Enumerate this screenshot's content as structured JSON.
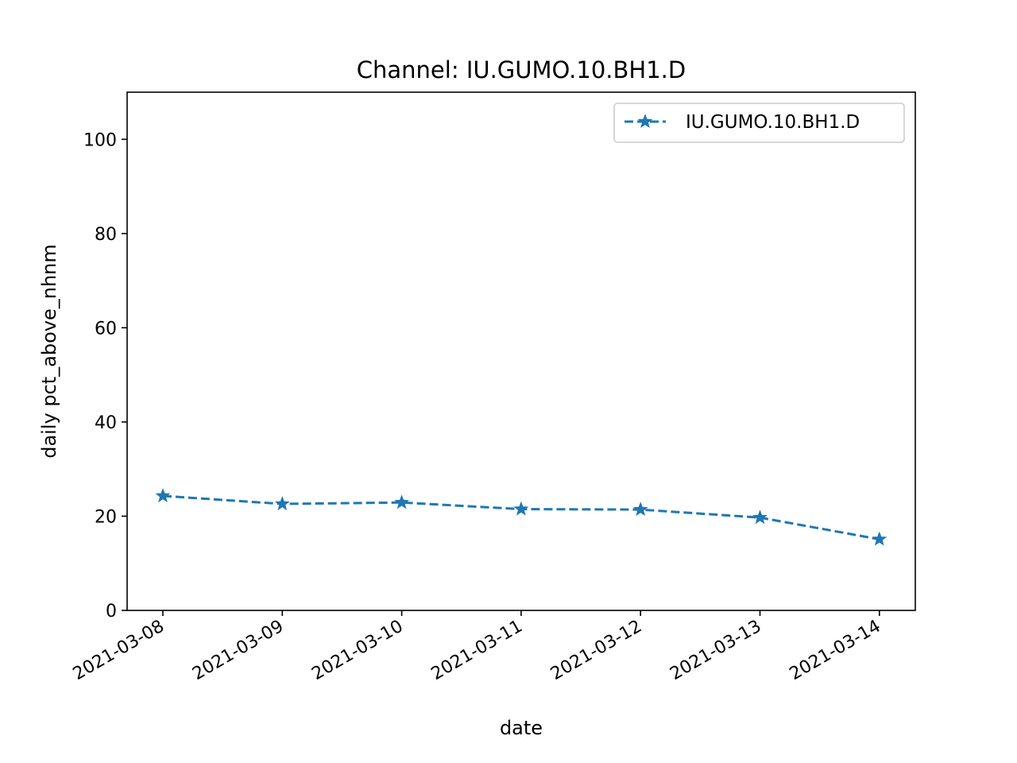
{
  "chart_data": {
    "type": "line",
    "title": "Channel: IU.GUMO.10.BH1.D",
    "xlabel": "date",
    "ylabel": "daily pct_above_nhnm",
    "categories": [
      "2021-03-08",
      "2021-03-09",
      "2021-03-10",
      "2021-03-11",
      "2021-03-12",
      "2021-03-13",
      "2021-03-14"
    ],
    "series": [
      {
        "name": "IU.GUMO.10.BH1.D",
        "values": [
          24.3,
          22.6,
          22.9,
          21.5,
          21.4,
          19.7,
          15.1
        ],
        "color": "#1f77b4",
        "line_style": "dashed",
        "marker": "star"
      }
    ],
    "ylim": [
      0,
      110
    ],
    "yticks": [
      0,
      20,
      40,
      60,
      80,
      100
    ],
    "grid": false,
    "legend_position": "top-right"
  }
}
